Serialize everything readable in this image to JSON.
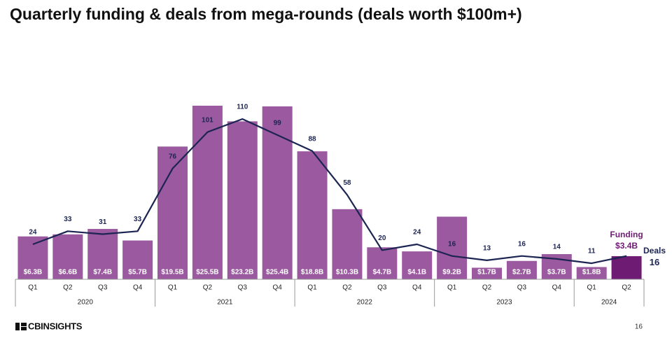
{
  "chart_data": {
    "type": "bar-line",
    "title": "Quarterly funding & deals from mega-rounds (deals worth $100m+)",
    "categories": [
      "Q1",
      "Q2",
      "Q3",
      "Q4",
      "Q1",
      "Q2",
      "Q3",
      "Q4",
      "Q1",
      "Q2",
      "Q3",
      "Q4",
      "Q1",
      "Q2",
      "Q3",
      "Q4",
      "Q1",
      "Q2"
    ],
    "category_groups": [
      "2020",
      "2020",
      "2020",
      "2020",
      "2021",
      "2021",
      "2021",
      "2021",
      "2022",
      "2022",
      "2022",
      "2022",
      "2023",
      "2023",
      "2023",
      "2023",
      "2024",
      "2024"
    ],
    "series": [
      {
        "name": "Funding",
        "type": "bar",
        "color": "#9b5aa0",
        "colors": [
          "#9b5aa0",
          "#9b5aa0",
          "#9b5aa0",
          "#9b5aa0",
          "#9b5aa0",
          "#9b5aa0",
          "#9b5aa0",
          "#9b5aa0",
          "#9b5aa0",
          "#9b5aa0",
          "#9b5aa0",
          "#9b5aa0",
          "#9b5aa0",
          "#9b5aa0",
          "#9b5aa0",
          "#9b5aa0",
          "#9b5aa0",
          "#6e1b74"
        ],
        "values": [
          6.3,
          6.6,
          7.4,
          5.7,
          19.5,
          25.5,
          23.2,
          25.4,
          18.8,
          10.3,
          4.7,
          4.1,
          9.2,
          1.7,
          2.7,
          3.7,
          1.8,
          3.4
        ],
        "value_labels": [
          "$6.3B",
          "$6.6B",
          "$7.4B",
          "$5.7B",
          "$19.5B",
          "$25.5B",
          "$23.2B",
          "$25.4B",
          "$18.8B",
          "$10.3B",
          "$4.7B",
          "$4.1B",
          "$9.2B",
          "$1.7B",
          "$2.7B",
          "$3.7B",
          "$1.8B",
          "$3.4B"
        ]
      },
      {
        "name": "Deals",
        "type": "line",
        "color": "#1c2452",
        "values": [
          24,
          33,
          31,
          33,
          76,
          101,
          110,
          99,
          88,
          58,
          20,
          24,
          16,
          13,
          16,
          14,
          11,
          16
        ]
      }
    ]
  },
  "footer": {
    "logo": "CBINSIGHTS",
    "page_number": "16"
  }
}
